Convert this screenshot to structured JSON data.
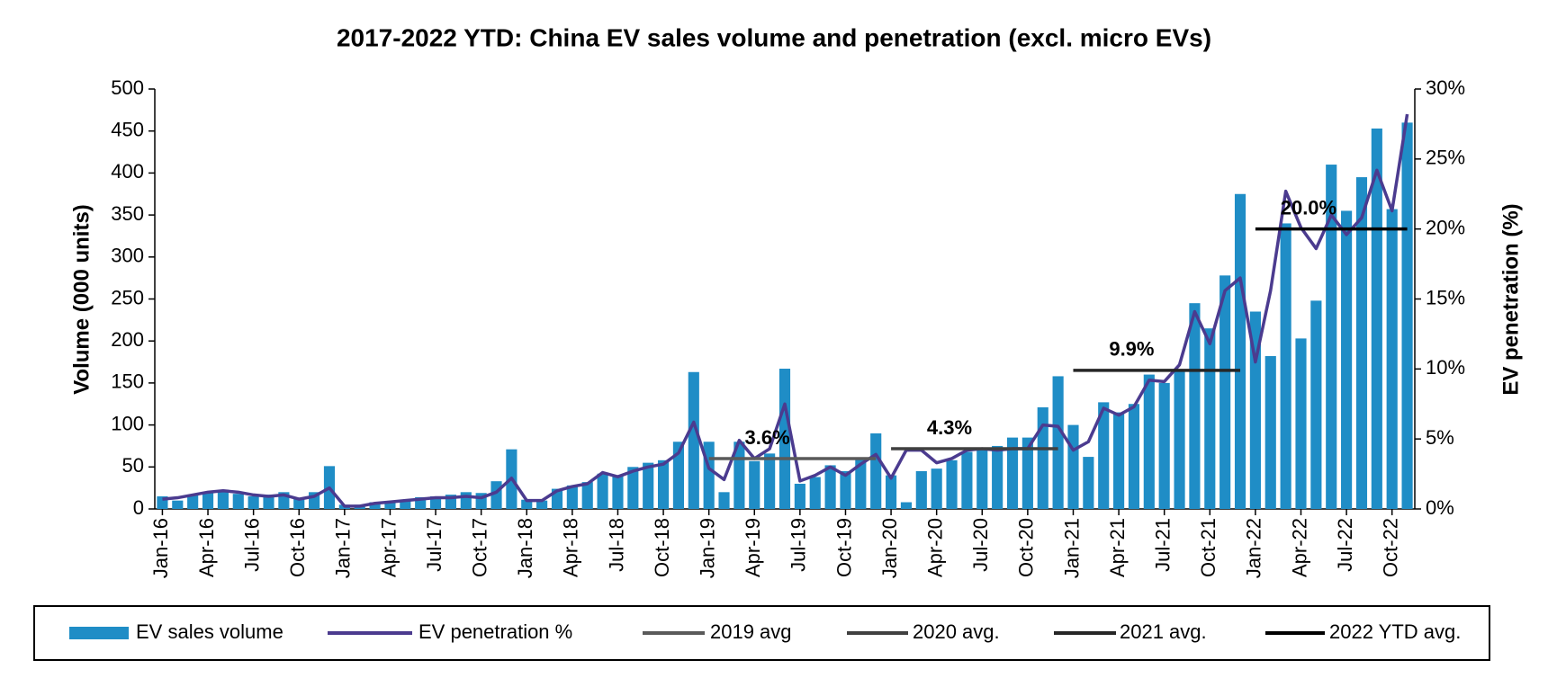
{
  "chart_data": {
    "type": "bar",
    "title": "2017-2022 YTD: China EV sales volume and penetration (excl. micro EVs)",
    "y_label": "Volume (000 units)",
    "y2_label": "EV penetration (%)",
    "categories": [
      "Jan-16",
      null,
      null,
      "Apr-16",
      null,
      null,
      "Jul-16",
      null,
      null,
      "Oct-16",
      null,
      null,
      "Jan-17",
      null,
      null,
      "Apr-17",
      null,
      null,
      "Jul-17",
      null,
      null,
      "Oct-17",
      null,
      null,
      "Jan-18",
      null,
      null,
      "Apr-18",
      null,
      null,
      "Jul-18",
      null,
      null,
      "Oct-18",
      null,
      null,
      "Jan-19",
      null,
      null,
      "Apr-19",
      null,
      null,
      "Jul-19",
      null,
      null,
      "Oct-19",
      null,
      null,
      "Jan-20",
      null,
      null,
      "Apr-20",
      null,
      null,
      "Jul-20",
      null,
      null,
      "Oct-20",
      null,
      null,
      "Jan-21",
      null,
      null,
      "Apr-21",
      null,
      null,
      "Jul-21",
      null,
      null,
      "Oct-21",
      null,
      null,
      "Jan-22",
      null,
      null,
      "Apr-22",
      null,
      null,
      "Jul-22",
      null,
      null,
      "Oct-22",
      null
    ],
    "series": [
      {
        "name": "EV sales volume",
        "type": "bar",
        "color": "#1f8dc6",
        "values": [
          15,
          10,
          17,
          20,
          22,
          18,
          15,
          17,
          20,
          13,
          20,
          51,
          5,
          5,
          8,
          9,
          11,
          14,
          15,
          17,
          20,
          19,
          33,
          71,
          11,
          10,
          24,
          28,
          32,
          42,
          40,
          50,
          55,
          58,
          80,
          163,
          80,
          20,
          80,
          57,
          66,
          167,
          30,
          38,
          52,
          45,
          60,
          90,
          40,
          8,
          45,
          48,
          58,
          68,
          70,
          75,
          85,
          85,
          121,
          158,
          100,
          62,
          127,
          115,
          125,
          160,
          150,
          165,
          245,
          215,
          278,
          375,
          235,
          182,
          340,
          203,
          248,
          410,
          355,
          395,
          453,
          357,
          460
        ]
      },
      {
        "name": "EV penetration %",
        "type": "line",
        "axis": "y2",
        "color": "#4b3b8f",
        "values": [
          0.7,
          0.8,
          1.0,
          1.2,
          1.3,
          1.2,
          1.0,
          0.9,
          1.0,
          0.7,
          0.9,
          1.5,
          0.2,
          0.2,
          0.4,
          0.5,
          0.6,
          0.7,
          0.8,
          0.8,
          0.9,
          0.8,
          1.2,
          2.2,
          0.6,
          0.6,
          1.3,
          1.6,
          1.8,
          2.6,
          2.3,
          2.7,
          3.0,
          3.2,
          4.0,
          6.2,
          2.9,
          2.1,
          4.9,
          3.6,
          4.3,
          7.5,
          2.0,
          2.4,
          3.0,
          2.4,
          3.2,
          3.9,
          2.2,
          4.2,
          4.2,
          3.3,
          3.6,
          4.2,
          4.3,
          4.2,
          4.3,
          4.3,
          6.0,
          5.9,
          4.2,
          4.8,
          7.2,
          6.7,
          7.3,
          9.2,
          9.1,
          10.3,
          14.1,
          11.8,
          15.6,
          16.5,
          10.5,
          15.6,
          22.7,
          20.1,
          18.6,
          21.0,
          19.6,
          20.8,
          24.2,
          21.3,
          28.2
        ]
      },
      {
        "name": "2019 avg",
        "type": "avg",
        "axis": "y2",
        "color": "#5a5a5a",
        "value_label": "3.6%",
        "values": [
          null,
          null,
          null,
          null,
          null,
          null,
          null,
          null,
          null,
          null,
          null,
          null,
          null,
          null,
          null,
          null,
          null,
          null,
          null,
          null,
          null,
          null,
          null,
          null,
          null,
          null,
          null,
          null,
          null,
          null,
          null,
          null,
          null,
          null,
          null,
          null,
          3.6,
          3.6,
          3.6,
          3.6,
          3.6,
          3.6,
          3.6,
          3.6,
          3.6,
          3.6,
          3.6,
          3.6,
          null,
          null,
          null,
          null,
          null,
          null,
          null,
          null,
          null,
          null,
          null,
          null,
          null,
          null,
          null,
          null,
          null,
          null,
          null,
          null,
          null,
          null,
          null,
          null,
          null,
          null,
          null,
          null,
          null,
          null,
          null,
          null,
          null,
          null,
          null
        ]
      },
      {
        "name": "2020 avg.",
        "type": "avg",
        "axis": "y2",
        "color": "#404040",
        "value_label": "4.3%",
        "values": [
          null,
          null,
          null,
          null,
          null,
          null,
          null,
          null,
          null,
          null,
          null,
          null,
          null,
          null,
          null,
          null,
          null,
          null,
          null,
          null,
          null,
          null,
          null,
          null,
          null,
          null,
          null,
          null,
          null,
          null,
          null,
          null,
          null,
          null,
          null,
          null,
          null,
          null,
          null,
          null,
          null,
          null,
          null,
          null,
          null,
          null,
          null,
          null,
          4.3,
          4.3,
          4.3,
          4.3,
          4.3,
          4.3,
          4.3,
          4.3,
          4.3,
          4.3,
          4.3,
          4.3,
          null,
          null,
          null,
          null,
          null,
          null,
          null,
          null,
          null,
          null,
          null,
          null,
          null,
          null,
          null,
          null,
          null,
          null,
          null,
          null,
          null,
          null,
          null
        ]
      },
      {
        "name": "2021 avg.",
        "type": "avg",
        "axis": "y2",
        "color": "#262626",
        "value_label": "9.9%",
        "values": [
          null,
          null,
          null,
          null,
          null,
          null,
          null,
          null,
          null,
          null,
          null,
          null,
          null,
          null,
          null,
          null,
          null,
          null,
          null,
          null,
          null,
          null,
          null,
          null,
          null,
          null,
          null,
          null,
          null,
          null,
          null,
          null,
          null,
          null,
          null,
          null,
          null,
          null,
          null,
          null,
          null,
          null,
          null,
          null,
          null,
          null,
          null,
          null,
          null,
          null,
          null,
          null,
          null,
          null,
          null,
          null,
          null,
          null,
          null,
          null,
          9.9,
          9.9,
          9.9,
          9.9,
          9.9,
          9.9,
          9.9,
          9.9,
          9.9,
          9.9,
          9.9,
          9.9,
          null,
          null,
          null,
          null,
          null,
          null,
          null,
          null,
          null,
          null,
          null
        ]
      },
      {
        "name": "2022 YTD avg.",
        "type": "avg",
        "axis": "y2",
        "color": "#000000",
        "value_label": "20.0%",
        "values": [
          null,
          null,
          null,
          null,
          null,
          null,
          null,
          null,
          null,
          null,
          null,
          null,
          null,
          null,
          null,
          null,
          null,
          null,
          null,
          null,
          null,
          null,
          null,
          null,
          null,
          null,
          null,
          null,
          null,
          null,
          null,
          null,
          null,
          null,
          null,
          null,
          null,
          null,
          null,
          null,
          null,
          null,
          null,
          null,
          null,
          null,
          null,
          null,
          null,
          null,
          null,
          null,
          null,
          null,
          null,
          null,
          null,
          null,
          null,
          null,
          null,
          null,
          null,
          null,
          null,
          null,
          null,
          null,
          null,
          null,
          null,
          null,
          20,
          20,
          20,
          20,
          20,
          20,
          20,
          20,
          20,
          20,
          20
        ]
      }
    ],
    "ylim": [
      0,
      500
    ],
    "yticks": [
      0,
      50,
      100,
      150,
      200,
      250,
      300,
      350,
      400,
      450,
      500
    ],
    "y2lim": [
      0,
      30
    ],
    "y2ticks": [
      {
        "value": 0,
        "label": "0%"
      },
      {
        "value": 5,
        "label": "5%"
      },
      {
        "value": 10,
        "label": "10%"
      },
      {
        "value": 15,
        "label": "15%"
      },
      {
        "value": 20,
        "label": "20%"
      },
      {
        "value": 25,
        "label": "25%"
      },
      {
        "value": 30,
        "label": "30%"
      }
    ],
    "legend": "bottom"
  }
}
